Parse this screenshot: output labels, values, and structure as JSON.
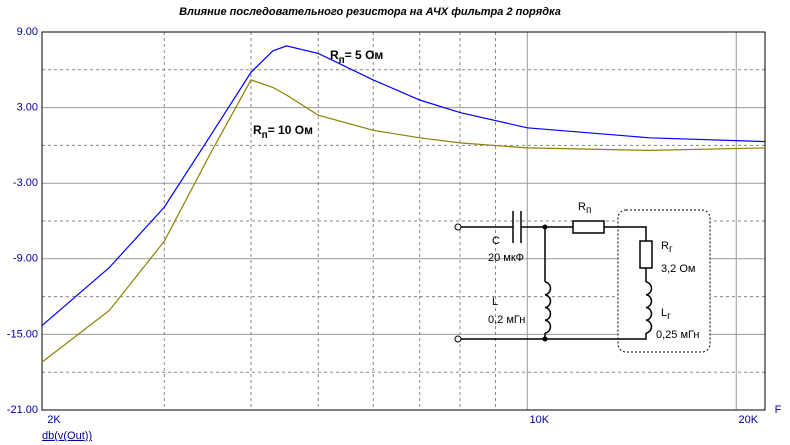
{
  "chart_data": {
    "type": "line",
    "title": "Влияние последовательного резистора на АЧХ фильтра 2 порядка",
    "x_label": "F",
    "y_label": "db(v(Out))",
    "xscale": "log",
    "xlim": [
      2000,
      22000
    ],
    "xticks": [
      {
        "value": 2000,
        "label": "2K"
      },
      {
        "value": 10000,
        "label": "10K"
      },
      {
        "value": 20000,
        "label": "20K"
      }
    ],
    "xminor": [
      3000,
      4000,
      5000,
      6000,
      7000,
      8000,
      9000
    ],
    "ylim": [
      -21,
      9
    ],
    "yticks": [
      {
        "value": 9,
        "label": "9.00"
      },
      {
        "value": 3,
        "label": "3.00"
      },
      {
        "value": -3,
        "label": "-3.00"
      },
      {
        "value": -9,
        "label": "-9.00"
      },
      {
        "value": -15,
        "label": "-15.00"
      },
      {
        "value": -21,
        "label": "-21.00"
      }
    ],
    "yminor": [
      6,
      0,
      -6,
      -12,
      -18
    ],
    "grid": true,
    "x": [
      2000,
      2500,
      3000,
      3500,
      4000,
      4300,
      4500,
      5000,
      6000,
      7000,
      8000,
      10000,
      15000,
      22000
    ],
    "series": [
      {
        "color": "#0000ff",
        "values": [
          -14.3,
          -9.7,
          -4.9,
          0.8,
          5.8,
          7.5,
          7.9,
          7.3,
          5.2,
          3.6,
          2.6,
          1.4,
          0.6,
          0.3
        ]
      },
      {
        "color": "#8b8000",
        "values": [
          -17.2,
          -13.1,
          -7.6,
          -0.6,
          5.2,
          4.6,
          4.0,
          2.4,
          1.2,
          0.6,
          0.2,
          -0.2,
          -0.4,
          -0.2
        ]
      }
    ],
    "annotations": [
      {
        "main": "R",
        "sub": "п",
        "text": "= 5 Ом"
      },
      {
        "main": "R",
        "sub": "п",
        "text": "= 10 Ом"
      }
    ]
  },
  "circuit": {
    "c_label": "C",
    "c_value": "20 мкФ",
    "rp_label": {
      "main": "R",
      "sub": "п"
    },
    "rg_label": {
      "main": "R",
      "sub": "г"
    },
    "rg_value": "3,2 Ом",
    "l_label": "L",
    "l_value": "0,2 мГн",
    "lg_label": {
      "main": "L",
      "sub": "г"
    },
    "lg_value": "0,25 мГн"
  }
}
